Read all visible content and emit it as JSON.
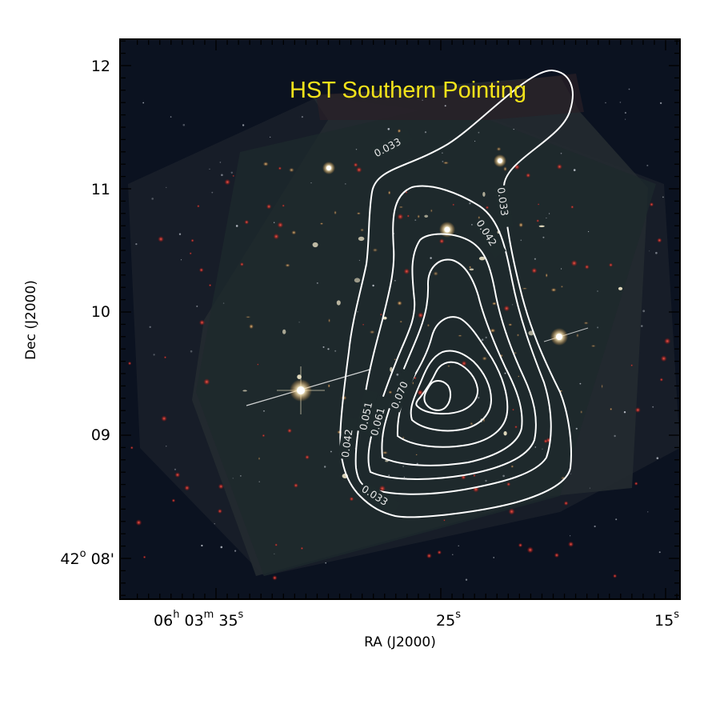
{
  "title": "HST Southern Pointing",
  "axes": {
    "xlabel": "RA (J2000)",
    "ylabel": "Dec (J2000)",
    "x_ticks": [
      {
        "label": "06",
        "sup": "h",
        "label2": " 03",
        "sup2": "m",
        "label3": " 35",
        "sup3": "s"
      },
      {
        "label": "25",
        "sup": "s"
      },
      {
        "label": "15",
        "sup": "s"
      }
    ],
    "y_ticks": [
      {
        "label": "12"
      },
      {
        "label": "11"
      },
      {
        "label": "10"
      },
      {
        "label": "09"
      },
      {
        "label": "42",
        "sup": "o",
        "label2": " 08'"
      }
    ]
  },
  "contours": {
    "labels": [
      "0.033",
      "0.033",
      "0.042",
      "0.042",
      "0.051",
      "0.061",
      "0.070",
      "0.033"
    ]
  },
  "colors": {
    "background": "#0b1220",
    "contour": "#ffffff",
    "title": "#f2e21a"
  }
}
